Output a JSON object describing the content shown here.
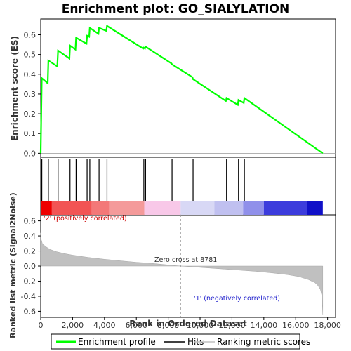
{
  "chart_data": {
    "type": "line",
    "title": "Enrichment plot: GO_SIALYLATION",
    "enrichment_panel": {
      "ylabel": "Enrichment score (ES)",
      "ylim": [
        -0.02,
        0.68
      ],
      "yticks": [
        0.0,
        0.1,
        0.2,
        0.3,
        0.4,
        0.5,
        0.6
      ],
      "ytick_labels": [
        "0.0",
        "0.1",
        "0.2",
        "0.3",
        "0.4",
        "0.5",
        "0.6"
      ],
      "series": [
        {
          "name": "Enrichment profile",
          "color": "#00ff00",
          "x": [
            0,
            60,
            70,
            440,
            480,
            1040,
            1090,
            1800,
            1840,
            2180,
            2220,
            2870,
            2910,
            3040,
            3080,
            3620,
            3660,
            4120,
            4160,
            6430,
            6470,
            6540,
            6580,
            8200,
            8240,
            9520,
            9560,
            11620,
            11660,
            12370,
            12410,
            12740,
            12780,
            17700
          ],
          "y": [
            0.0,
            0.36,
            0.38,
            0.355,
            0.47,
            0.44,
            0.52,
            0.48,
            0.545,
            0.525,
            0.585,
            0.555,
            0.595,
            0.59,
            0.635,
            0.605,
            0.635,
            0.62,
            0.645,
            0.53,
            0.535,
            0.53,
            0.54,
            0.455,
            0.45,
            0.385,
            0.375,
            0.265,
            0.28,
            0.245,
            0.27,
            0.255,
            0.28,
            0.0
          ]
        }
      ]
    },
    "hits": [
      30,
      70,
      480,
      1090,
      1840,
      2220,
      2910,
      3080,
      3660,
      4160,
      6470,
      6580,
      8240,
      9560,
      11660,
      12410,
      12780
    ],
    "ranking_panel": {
      "ylabel": "Ranked list metric (Signal2Noise)",
      "ylim": [
        -0.68,
        0.68
      ],
      "yticks": [
        -0.6,
        -0.4,
        -0.2,
        0.0,
        0.2,
        0.4,
        0.6
      ],
      "ytick_labels": [
        "-0.6",
        "-0.4",
        "-0.2",
        "0.0",
        "0.2",
        "0.4",
        "0.6"
      ],
      "series": [
        {
          "name": "Ranking metric scores",
          "color": "#c0c0c0",
          "x": [
            0,
            20,
            100,
            300,
            600,
            1000,
            1500,
            2000,
            3000,
            4000,
            5000,
            6000,
            7000,
            8000,
            8781,
            9500,
            10500,
            11500,
            12500,
            13500,
            14500,
            15500,
            16200,
            16800,
            17200,
            17400,
            17550,
            17650,
            17700
          ],
          "y": [
            0.44,
            0.36,
            0.3,
            0.26,
            0.22,
            0.19,
            0.165,
            0.145,
            0.115,
            0.09,
            0.07,
            0.05,
            0.035,
            0.015,
            0.0,
            -0.01,
            -0.025,
            -0.04,
            -0.055,
            -0.07,
            -0.09,
            -0.115,
            -0.14,
            -0.18,
            -0.22,
            -0.26,
            -0.31,
            -0.4,
            -0.65
          ]
        }
      ],
      "zero_cross_label": "Zero cross at 8781",
      "zero_cross_x": 8781,
      "positive_label": "'2' (positively correlated)",
      "negative_label": "'1' (negatively correlated)"
    },
    "color_bar": [
      {
        "x0": 0,
        "x1": 700,
        "color": "#ee0000"
      },
      {
        "x0": 700,
        "x1": 3200,
        "color": "#f25454"
      },
      {
        "x0": 3200,
        "x1": 4300,
        "color": "#f37878"
      },
      {
        "x0": 4300,
        "x1": 6500,
        "color": "#f49a9a"
      },
      {
        "x0": 6500,
        "x1": 8781,
        "color": "#f8c8e8"
      },
      {
        "x0": 8781,
        "x1": 10900,
        "color": "#d8d8f5"
      },
      {
        "x0": 10900,
        "x1": 12700,
        "color": "#c0c0f0"
      },
      {
        "x0": 12700,
        "x1": 14000,
        "color": "#9090ea"
      },
      {
        "x0": 14000,
        "x1": 16700,
        "color": "#3c3cdc"
      },
      {
        "x0": 16700,
        "x1": 17700,
        "color": "#1010c8"
      }
    ],
    "xaxis": {
      "xlabel": "Rank in Ordered Dataset",
      "xlim": [
        0,
        18500
      ],
      "xticks": [
        0,
        2000,
        4000,
        6000,
        8000,
        10000,
        12000,
        14000,
        16000,
        18000
      ],
      "xtick_labels": [
        "0",
        "2,000",
        "4,000",
        "6,000",
        "8,000",
        "10,000",
        "12,000",
        "14,000",
        "16,000",
        "18,000"
      ]
    },
    "legend": {
      "placement": "bottom",
      "items": [
        {
          "label": "Enrichment profile",
          "color": "#00ff00"
        },
        {
          "label": "Hits",
          "color": "#000000"
        },
        {
          "label": "Ranking metric scores",
          "color": "#c0c0c0"
        }
      ]
    }
  }
}
